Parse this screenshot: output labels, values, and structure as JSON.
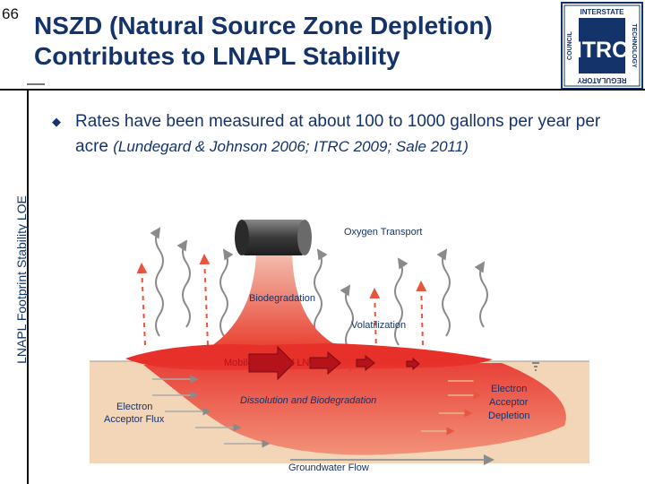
{
  "slide_number": "66",
  "title": {
    "line1": "NSZD (Natural Source Zone Depletion)",
    "line2": "Contributes to LNAPL Stability"
  },
  "side_label": "LNAPL Footprint Stability LOE",
  "logo": {
    "top": "INTERSTATE",
    "right": "TECHNOLOGY",
    "bottom": "REGULATORY",
    "left": "COUNCIL",
    "center": "ITRC"
  },
  "bullet": {
    "text": "Rates have been measured at about 100 to 1000 gallons per year per acre ",
    "citation": "(Lundegard & Johnson 2006; ITRC 2009; Sale 2011)"
  },
  "diagram": {
    "labels": {
      "oxygen_transport": "Oxygen Transport",
      "biodegradation": "Biodegradation",
      "volatilization": "Volatilization",
      "mobile_residual": "Mobile/Residual LNAPL",
      "dissolution": "Dissolution and Biodegradation",
      "electron_acceptor_flux": [
        "Electron",
        "Acceptor Flux"
      ],
      "electron_acceptor_depletion": [
        "Electron",
        "Acceptor",
        "Depletion"
      ],
      "groundwater_flow": "Groundwater Flow"
    },
    "colors": {
      "plume": "#e8302a",
      "plume_light": "#f08070",
      "groundwater": "#f3d6b8",
      "arrow": "#b5121b",
      "label": "#14336b"
    }
  }
}
